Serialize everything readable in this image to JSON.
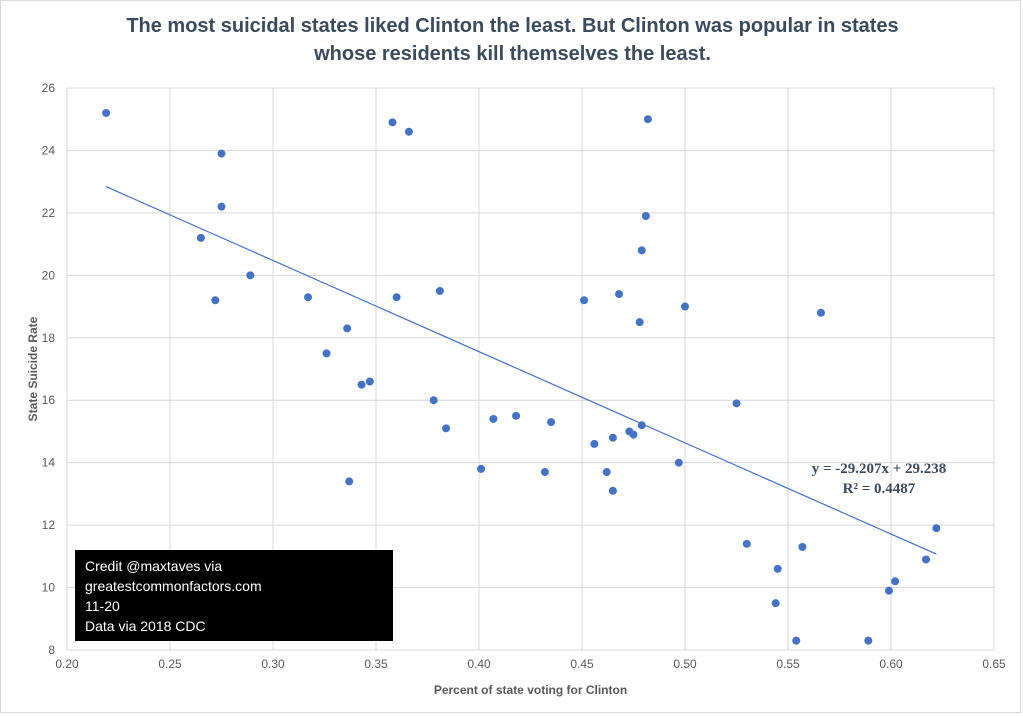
{
  "chart_data": {
    "type": "scatter",
    "title_lines": [
      "The most suicidal states liked Clinton the least. But Clinton was popular in states",
      "whose residents kill themselves the least."
    ],
    "xlabel": "Percent of state voting for Clinton",
    "ylabel": "State Suicide Rate",
    "xlim": [
      0.2,
      0.65
    ],
    "ylim": [
      8,
      26
    ],
    "x_ticks": [
      0.2,
      0.25,
      0.3,
      0.35,
      0.4,
      0.45,
      0.5,
      0.55,
      0.6,
      0.65
    ],
    "x_tick_labels": [
      "0.20",
      "0.25",
      "0.30",
      "0.35",
      "0.40",
      "0.45",
      "0.50",
      "0.55",
      "0.60",
      "0.65"
    ],
    "y_ticks": [
      8,
      10,
      12,
      14,
      16,
      18,
      20,
      22,
      24,
      26
    ],
    "y_tick_labels": [
      "8",
      "10",
      "12",
      "14",
      "16",
      "18",
      "20",
      "22",
      "24",
      "26"
    ],
    "grid": true,
    "point_color": "#4472c4",
    "trendline": {
      "slope": -29.207,
      "intercept": 29.238,
      "x_range": [
        0.219,
        0.622
      ],
      "color": "#4472c4",
      "equation_text": "y = -29.207x + 29.238",
      "r2_text": "R² = 0.4487"
    },
    "points": [
      {
        "x": 0.219,
        "y": 25.2
      },
      {
        "x": 0.275,
        "y": 23.9
      },
      {
        "x": 0.275,
        "y": 22.2
      },
      {
        "x": 0.265,
        "y": 21.2
      },
      {
        "x": 0.272,
        "y": 19.2
      },
      {
        "x": 0.289,
        "y": 20.0
      },
      {
        "x": 0.317,
        "y": 19.3
      },
      {
        "x": 0.326,
        "y": 17.5
      },
      {
        "x": 0.336,
        "y": 18.3
      },
      {
        "x": 0.337,
        "y": 13.4
      },
      {
        "x": 0.343,
        "y": 16.5
      },
      {
        "x": 0.347,
        "y": 16.6
      },
      {
        "x": 0.358,
        "y": 24.9
      },
      {
        "x": 0.36,
        "y": 19.3
      },
      {
        "x": 0.366,
        "y": 24.6
      },
      {
        "x": 0.378,
        "y": 16.0
      },
      {
        "x": 0.381,
        "y": 19.5
      },
      {
        "x": 0.384,
        "y": 15.1
      },
      {
        "x": 0.401,
        "y": 13.8
      },
      {
        "x": 0.407,
        "y": 15.4
      },
      {
        "x": 0.418,
        "y": 15.5
      },
      {
        "x": 0.432,
        "y": 13.7
      },
      {
        "x": 0.435,
        "y": 15.3
      },
      {
        "x": 0.451,
        "y": 19.2
      },
      {
        "x": 0.456,
        "y": 14.6
      },
      {
        "x": 0.462,
        "y": 13.7
      },
      {
        "x": 0.465,
        "y": 14.8
      },
      {
        "x": 0.465,
        "y": 13.1
      },
      {
        "x": 0.468,
        "y": 19.4
      },
      {
        "x": 0.473,
        "y": 15.0
      },
      {
        "x": 0.475,
        "y": 14.9
      },
      {
        "x": 0.478,
        "y": 18.5
      },
      {
        "x": 0.479,
        "y": 15.2
      },
      {
        "x": 0.479,
        "y": 20.8
      },
      {
        "x": 0.481,
        "y": 21.9
      },
      {
        "x": 0.482,
        "y": 25.0
      },
      {
        "x": 0.497,
        "y": 14.0
      },
      {
        "x": 0.5,
        "y": 19.0
      },
      {
        "x": 0.525,
        "y": 15.9
      },
      {
        "x": 0.53,
        "y": 11.4
      },
      {
        "x": 0.544,
        "y": 9.5
      },
      {
        "x": 0.545,
        "y": 10.6
      },
      {
        "x": 0.554,
        "y": 8.3
      },
      {
        "x": 0.557,
        "y": 11.3
      },
      {
        "x": 0.566,
        "y": 18.8
      },
      {
        "x": 0.589,
        "y": 8.3
      },
      {
        "x": 0.599,
        "y": 9.9
      },
      {
        "x": 0.602,
        "y": 10.2
      },
      {
        "x": 0.617,
        "y": 10.9
      },
      {
        "x": 0.622,
        "y": 11.9
      }
    ]
  },
  "credit": {
    "line1": "Credit @maxtaves via",
    "line2": "greatestcommonfactors.com",
    "line3": "11-20",
    "line4": "Data via 2018 CDC"
  }
}
